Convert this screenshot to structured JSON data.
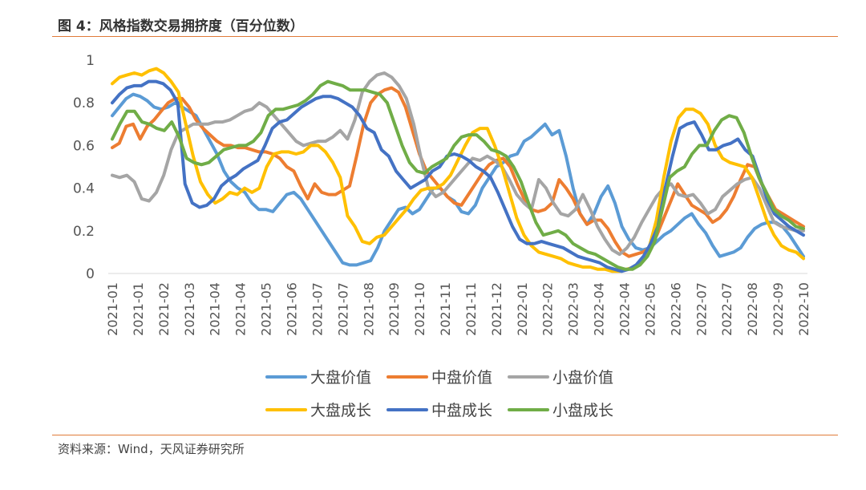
{
  "title": "图 4：风格指数交易拥挤度（百分位数）",
  "source": "资料来源：Wind，天风证券研究所",
  "colors": {
    "rule": "#E07B39"
  },
  "chart_data": {
    "type": "line",
    "title": "",
    "xlabel": "",
    "ylabel": "",
    "ylim": [
      0,
      1
    ],
    "yticks": [
      "0",
      "0.2",
      "0.4",
      "0.6",
      "0.8",
      "1"
    ],
    "x_tick_labels": [
      "2021-01",
      "2021-01",
      "2021-02",
      "2021-03",
      "2021-04",
      "2021-04",
      "2021-05",
      "2021-06",
      "2021-07",
      "2021-07",
      "2021-08",
      "2021-09",
      "2021-10",
      "2021-11",
      "2021-11",
      "2021-12",
      "2022-01",
      "2022-02",
      "2022-03",
      "2022-04",
      "2022-04",
      "2022-05",
      "2022-06",
      "2022-07",
      "2022-07",
      "2022-08",
      "2022-09",
      "2022-10"
    ],
    "grid": false,
    "legend_position": "bottom",
    "series": [
      {
        "name": "大盘价值",
        "color": "#5B9BD5",
        "values": [
          0.74,
          0.78,
          0.82,
          0.84,
          0.83,
          0.81,
          0.78,
          0.77,
          0.78,
          0.8,
          0.78,
          0.76,
          0.74,
          0.68,
          0.62,
          0.56,
          0.48,
          0.43,
          0.4,
          0.38,
          0.33,
          0.3,
          0.3,
          0.29,
          0.33,
          0.37,
          0.38,
          0.35,
          0.3,
          0.25,
          0.2,
          0.15,
          0.1,
          0.05,
          0.04,
          0.04,
          0.05,
          0.06,
          0.12,
          0.2,
          0.25,
          0.3,
          0.31,
          0.28,
          0.3,
          0.35,
          0.4,
          0.4,
          0.36,
          0.34,
          0.29,
          0.28,
          0.32,
          0.4,
          0.45,
          0.5,
          0.52,
          0.55,
          0.56,
          0.62,
          0.64,
          0.67,
          0.7,
          0.65,
          0.67,
          0.55,
          0.4,
          0.28,
          0.23,
          0.28,
          0.36,
          0.41,
          0.33,
          0.22,
          0.16,
          0.12,
          0.11,
          0.12,
          0.15,
          0.18,
          0.2,
          0.23,
          0.26,
          0.28,
          0.23,
          0.19,
          0.13,
          0.08,
          0.09,
          0.1,
          0.12,
          0.17,
          0.21,
          0.23,
          0.24,
          0.24,
          0.22,
          0.18,
          0.13,
          0.08
        ]
      },
      {
        "name": "中盘价值",
        "color": "#ED7D31",
        "values": [
          0.59,
          0.61,
          0.69,
          0.7,
          0.63,
          0.69,
          0.72,
          0.76,
          0.8,
          0.82,
          0.82,
          0.78,
          0.72,
          0.68,
          0.65,
          0.62,
          0.6,
          0.6,
          0.59,
          0.59,
          0.58,
          0.57,
          0.57,
          0.56,
          0.54,
          0.5,
          0.48,
          0.41,
          0.35,
          0.42,
          0.38,
          0.37,
          0.37,
          0.39,
          0.41,
          0.55,
          0.7,
          0.8,
          0.84,
          0.86,
          0.87,
          0.85,
          0.78,
          0.67,
          0.56,
          0.48,
          0.44,
          0.4,
          0.36,
          0.33,
          0.32,
          0.37,
          0.42,
          0.47,
          0.51,
          0.53,
          0.54,
          0.5,
          0.42,
          0.35,
          0.3,
          0.29,
          0.3,
          0.33,
          0.44,
          0.4,
          0.35,
          0.28,
          0.23,
          0.25,
          0.25,
          0.21,
          0.15,
          0.1,
          0.08,
          0.09,
          0.1,
          0.12,
          0.18,
          0.26,
          0.34,
          0.42,
          0.37,
          0.32,
          0.3,
          0.28,
          0.24,
          0.26,
          0.3,
          0.36,
          0.44,
          0.51,
          0.5,
          0.42,
          0.36,
          0.3,
          0.28,
          0.26,
          0.24,
          0.22
        ]
      },
      {
        "name": "小盘价值",
        "color": "#A5A5A5",
        "values": [
          0.46,
          0.45,
          0.46,
          0.43,
          0.35,
          0.34,
          0.38,
          0.46,
          0.58,
          0.66,
          0.68,
          0.7,
          0.7,
          0.7,
          0.71,
          0.71,
          0.72,
          0.74,
          0.76,
          0.77,
          0.8,
          0.78,
          0.74,
          0.7,
          0.66,
          0.62,
          0.6,
          0.61,
          0.62,
          0.62,
          0.64,
          0.67,
          0.63,
          0.72,
          0.85,
          0.9,
          0.93,
          0.94,
          0.92,
          0.88,
          0.82,
          0.7,
          0.54,
          0.4,
          0.36,
          0.38,
          0.42,
          0.46,
          0.5,
          0.54,
          0.53,
          0.55,
          0.53,
          0.5,
          0.44,
          0.37,
          0.33,
          0.3,
          0.44,
          0.4,
          0.33,
          0.28,
          0.27,
          0.3,
          0.37,
          0.3,
          0.22,
          0.16,
          0.11,
          0.09,
          0.12,
          0.17,
          0.24,
          0.3,
          0.36,
          0.4,
          0.42,
          0.37,
          0.36,
          0.37,
          0.33,
          0.28,
          0.3,
          0.36,
          0.39,
          0.42,
          0.44,
          0.45,
          0.4,
          0.32,
          0.24,
          0.22,
          0.21,
          0.2,
          0.2
        ]
      },
      {
        "name": "大盘成长",
        "color": "#FFC000",
        "values": [
          0.89,
          0.92,
          0.93,
          0.94,
          0.93,
          0.95,
          0.96,
          0.94,
          0.9,
          0.85,
          0.7,
          0.55,
          0.43,
          0.37,
          0.33,
          0.35,
          0.38,
          0.37,
          0.4,
          0.38,
          0.4,
          0.5,
          0.56,
          0.57,
          0.57,
          0.56,
          0.57,
          0.6,
          0.6,
          0.57,
          0.52,
          0.45,
          0.27,
          0.22,
          0.15,
          0.14,
          0.17,
          0.18,
          0.22,
          0.26,
          0.3,
          0.35,
          0.39,
          0.4,
          0.4,
          0.42,
          0.46,
          0.53,
          0.6,
          0.66,
          0.68,
          0.68,
          0.6,
          0.5,
          0.38,
          0.26,
          0.18,
          0.13,
          0.1,
          0.09,
          0.08,
          0.07,
          0.05,
          0.04,
          0.03,
          0.03,
          0.02,
          0.02,
          0.01,
          0.01,
          0.02,
          0.03,
          0.06,
          0.12,
          0.25,
          0.45,
          0.62,
          0.73,
          0.77,
          0.77,
          0.75,
          0.7,
          0.6,
          0.54,
          0.52,
          0.51,
          0.5,
          0.45,
          0.35,
          0.25,
          0.18,
          0.13,
          0.11,
          0.1,
          0.07
        ]
      },
      {
        "name": "中盘成长",
        "color": "#4472C4",
        "values": [
          0.8,
          0.84,
          0.87,
          0.88,
          0.88,
          0.9,
          0.9,
          0.89,
          0.86,
          0.8,
          0.42,
          0.33,
          0.31,
          0.32,
          0.35,
          0.41,
          0.44,
          0.46,
          0.49,
          0.51,
          0.53,
          0.6,
          0.68,
          0.71,
          0.72,
          0.75,
          0.78,
          0.8,
          0.82,
          0.83,
          0.83,
          0.82,
          0.8,
          0.78,
          0.74,
          0.68,
          0.66,
          0.58,
          0.55,
          0.48,
          0.44,
          0.4,
          0.42,
          0.44,
          0.48,
          0.5,
          0.55,
          0.56,
          0.55,
          0.53,
          0.5,
          0.48,
          0.45,
          0.38,
          0.3,
          0.22,
          0.16,
          0.14,
          0.14,
          0.15,
          0.14,
          0.13,
          0.12,
          0.1,
          0.08,
          0.07,
          0.06,
          0.05,
          0.03,
          0.02,
          0.01,
          0.02,
          0.04,
          0.08,
          0.14,
          0.22,
          0.4,
          0.55,
          0.68,
          0.7,
          0.71,
          0.65,
          0.58,
          0.58,
          0.6,
          0.61,
          0.63,
          0.58,
          0.55,
          0.45,
          0.35,
          0.28,
          0.25,
          0.22,
          0.2,
          0.18
        ]
      },
      {
        "name": "小盘成长",
        "color": "#70AD47",
        "values": [
          0.63,
          0.7,
          0.76,
          0.76,
          0.71,
          0.7,
          0.68,
          0.67,
          0.71,
          0.64,
          0.54,
          0.52,
          0.51,
          0.52,
          0.55,
          0.58,
          0.59,
          0.6,
          0.6,
          0.62,
          0.66,
          0.74,
          0.77,
          0.77,
          0.78,
          0.79,
          0.81,
          0.84,
          0.88,
          0.9,
          0.89,
          0.88,
          0.86,
          0.86,
          0.86,
          0.85,
          0.84,
          0.8,
          0.7,
          0.6,
          0.52,
          0.48,
          0.47,
          0.5,
          0.52,
          0.54,
          0.6,
          0.64,
          0.65,
          0.65,
          0.62,
          0.58,
          0.57,
          0.55,
          0.5,
          0.43,
          0.33,
          0.24,
          0.18,
          0.19,
          0.2,
          0.18,
          0.14,
          0.12,
          0.1,
          0.09,
          0.07,
          0.05,
          0.03,
          0.02,
          0.02,
          0.04,
          0.08,
          0.15,
          0.3,
          0.45,
          0.48,
          0.5,
          0.56,
          0.6,
          0.6,
          0.67,
          0.72,
          0.74,
          0.73,
          0.66,
          0.55,
          0.45,
          0.38,
          0.3,
          0.27,
          0.25,
          0.22,
          0.21
        ]
      }
    ]
  }
}
